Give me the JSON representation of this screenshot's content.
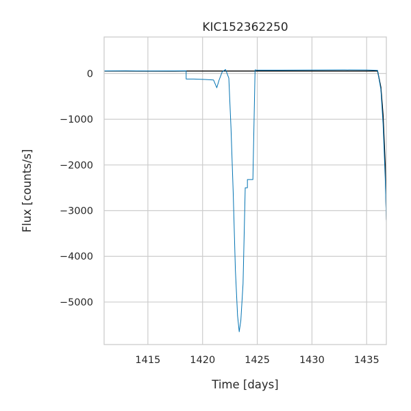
{
  "chart_data": {
    "type": "line",
    "title": "KIC152362250",
    "xlabel": "Time [days]",
    "ylabel": "Flux [counts/s]",
    "xlim": [
      1411.0,
      1436.8
    ],
    "ylim": [
      -5930,
      800
    ],
    "xticks": [
      1415,
      1420,
      1425,
      1430,
      1435
    ],
    "yticks": [
      0,
      -1000,
      -2000,
      -3000,
      -4000,
      -5000
    ],
    "ytick_labels": [
      "0",
      "−1000",
      "−2000",
      "−3000",
      "−4000",
      "−5000"
    ],
    "grid": true,
    "colors": {
      "series_black": "#000000",
      "series_blue": "#0072b2",
      "grid": "#cccccc",
      "frame": "#cccccc"
    },
    "series": [
      {
        "color": "#000000",
        "x": [
          1411.0,
          1413.0,
          1415.0,
          1417.0,
          1418.5,
          1418.5,
          1419.2,
          1420.2,
          1421.0,
          1421.3,
          1421.5,
          1421.8,
          1422.1,
          1422.4,
          1422.6,
          1422.8,
          1423.0,
          1423.2,
          1423.35,
          1423.5,
          1423.7,
          1423.9,
          1424.0,
          1424.1,
          1424.1,
          1424.2,
          1424.4,
          1424.6,
          1424.8,
          1425.0,
          1427.0,
          1429.0,
          1431.0,
          1433.0,
          1435.0,
          1436.0,
          1436.3,
          1436.5,
          1436.7,
          1436.8
        ],
        "y": [
          55,
          55,
          52,
          53,
          55,
          55,
          55,
          55,
          55,
          55,
          55,
          55,
          55,
          55,
          55,
          55,
          55,
          55,
          55,
          55,
          55,
          55,
          55,
          55,
          55,
          55,
          55,
          55,
          55,
          55,
          55,
          55,
          55,
          55,
          55,
          55,
          -300,
          -900,
          -2000,
          -3200
        ]
      },
      {
        "color": "#0072b2",
        "x": [
          1411.0,
          1413.0,
          1415.0,
          1417.0,
          1418.5,
          1418.5,
          1419.2,
          1420.2,
          1421.0,
          1421.3,
          1421.5,
          1421.8,
          1422.1,
          1422.4,
          1422.6,
          1422.8,
          1423.0,
          1423.2,
          1423.35,
          1423.5,
          1423.7,
          1423.9,
          1424.0,
          1424.1,
          1424.1,
          1424.2,
          1424.4,
          1424.6,
          1424.8,
          1425.0,
          1427.0,
          1429.0,
          1431.0,
          1433.0,
          1435.0,
          1436.0,
          1436.3,
          1436.5,
          1436.7,
          1436.8
        ],
        "y": [
          58,
          60,
          57,
          58,
          60,
          -120,
          -120,
          -130,
          -140,
          -310,
          -150,
          40,
          90,
          -100,
          -1200,
          -2600,
          -4300,
          -5300,
          -5650,
          -5400,
          -4600,
          -2500,
          -2500,
          -2500,
          -2320,
          -2320,
          -2320,
          -2320,
          80,
          75,
          75,
          77,
          78,
          80,
          78,
          70,
          -350,
          -1100,
          -2300,
          -3250
        ]
      }
    ]
  }
}
